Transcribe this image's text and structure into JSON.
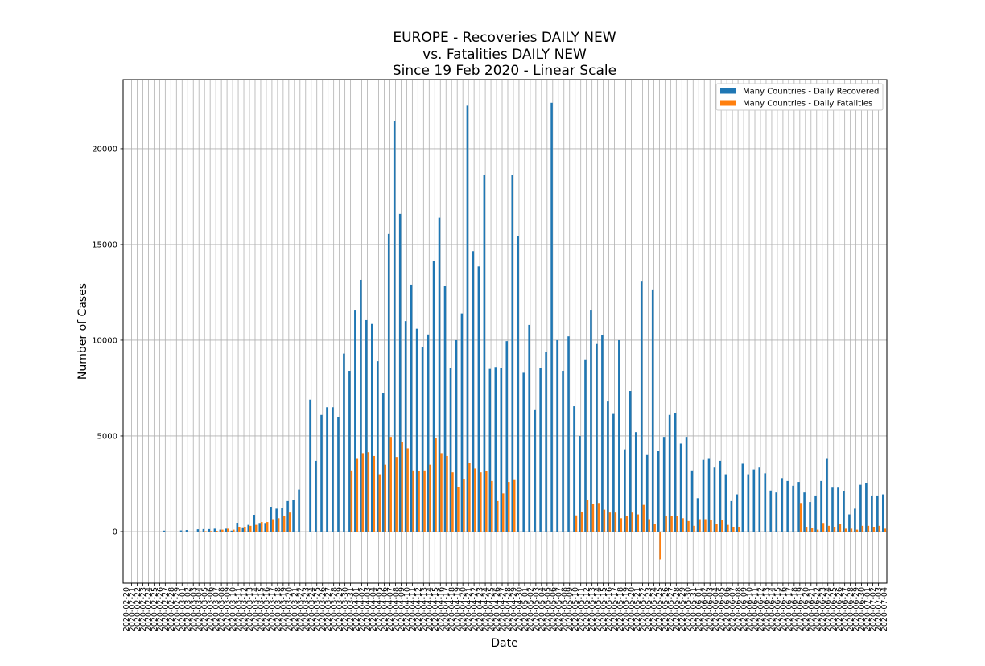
{
  "chart_data": {
    "type": "bar",
    "title": [
      "EUROPE - Recoveries DAILY NEW",
      "vs. Fatalities DAILY NEW",
      "Since 19 Feb 2020 - Linear Scale"
    ],
    "xlabel": "Date",
    "ylabel": "Number of Cases",
    "categories": [
      "2020-02-20",
      "2020-02-21",
      "2020-02-22",
      "2020-02-23",
      "2020-02-24",
      "2020-02-25",
      "2020-02-26",
      "2020-02-27",
      "2020-02-28",
      "2020-02-29",
      "2020-03-01",
      "2020-03-02",
      "2020-03-03",
      "2020-03-04",
      "2020-03-05",
      "2020-03-06",
      "2020-03-07",
      "2020-03-08",
      "2020-03-09",
      "2020-03-10",
      "2020-03-11",
      "2020-03-12",
      "2020-03-13",
      "2020-03-14",
      "2020-03-15",
      "2020-03-16",
      "2020-03-17",
      "2020-03-18",
      "2020-03-19",
      "2020-03-20",
      "2020-03-21",
      "2020-03-22",
      "2020-03-23",
      "2020-03-24",
      "2020-03-25",
      "2020-03-26",
      "2020-03-27",
      "2020-03-28",
      "2020-03-29",
      "2020-03-30",
      "2020-03-31",
      "2020-04-01",
      "2020-04-02",
      "2020-04-03",
      "2020-04-04",
      "2020-04-05",
      "2020-04-06",
      "2020-04-07",
      "2020-04-08",
      "2020-04-09",
      "2020-04-10",
      "2020-04-11",
      "2020-04-12",
      "2020-04-13",
      "2020-04-14",
      "2020-04-15",
      "2020-04-16",
      "2020-04-17",
      "2020-04-18",
      "2020-04-19",
      "2020-04-20",
      "2020-04-21",
      "2020-04-22",
      "2020-04-23",
      "2020-04-24",
      "2020-04-25",
      "2020-04-26",
      "2020-04-27",
      "2020-04-28",
      "2020-04-29",
      "2020-04-30",
      "2020-05-01",
      "2020-05-02",
      "2020-05-03",
      "2020-05-04",
      "2020-05-05",
      "2020-05-06",
      "2020-05-07",
      "2020-05-08",
      "2020-05-09",
      "2020-05-10",
      "2020-05-11",
      "2020-05-12",
      "2020-05-13",
      "2020-05-14",
      "2020-05-15",
      "2020-05-16",
      "2020-05-17",
      "2020-05-18",
      "2020-05-19",
      "2020-05-20",
      "2020-05-21",
      "2020-05-22",
      "2020-05-23",
      "2020-05-24",
      "2020-05-25",
      "2020-05-26",
      "2020-05-27",
      "2020-05-28",
      "2020-05-29",
      "2020-05-30",
      "2020-05-31",
      "2020-06-01",
      "2020-06-02",
      "2020-06-03",
      "2020-06-04",
      "2020-06-05",
      "2020-06-06",
      "2020-06-07",
      "2020-06-08",
      "2020-06-09",
      "2020-06-10",
      "2020-06-11",
      "2020-06-12",
      "2020-06-13",
      "2020-06-14",
      "2020-06-15",
      "2020-06-16",
      "2020-06-17",
      "2020-06-18",
      "2020-06-19",
      "2020-06-20",
      "2020-06-21",
      "2020-06-22",
      "2020-06-23",
      "2020-06-24",
      "2020-06-25",
      "2020-06-26",
      "2020-06-27",
      "2020-06-28",
      "2020-06-29",
      "2020-06-30",
      "2020-07-01",
      "2020-07-02",
      "2020-07-03",
      "2020-07-04"
    ],
    "series": [
      {
        "name": "Many Countries - Daily Recovered",
        "color": "#1f77b4",
        "values": [
          0,
          0,
          0,
          0,
          0,
          0,
          0,
          50,
          0,
          0,
          60,
          80,
          0,
          120,
          130,
          130,
          150,
          100,
          150,
          50,
          460,
          220,
          350,
          880,
          450,
          450,
          1300,
          1200,
          1250,
          1600,
          1650,
          2200,
          0,
          6900,
          3700,
          6100,
          6500,
          6500,
          6000,
          9300,
          8400,
          11550,
          13150,
          11050,
          10850,
          8900,
          7250,
          15550,
          21450,
          16600,
          11000,
          12900,
          10600,
          9650,
          10300,
          14150,
          16400,
          12850,
          8550,
          10000,
          11400,
          22250,
          14650,
          13850,
          18650,
          8500,
          8600,
          8550,
          9950,
          18650,
          15450,
          8300,
          10800,
          6350,
          8550,
          9400,
          22400,
          10000,
          8400,
          10200,
          6550,
          5000,
          9000,
          11550,
          9800,
          10250,
          6800,
          6150,
          10000,
          4300,
          7350,
          5200,
          13100,
          4000,
          12650,
          4200,
          4950,
          6100,
          6200,
          4600,
          4950,
          3200,
          1750,
          3750,
          3800,
          3350,
          3700,
          3000,
          1600,
          1950,
          3550,
          3000,
          3250,
          3350,
          3050,
          2150,
          2050,
          2800,
          2650,
          2400,
          2600,
          2050,
          1550,
          1850,
          2650,
          3800,
          2300,
          2300,
          2100,
          900,
          1200,
          2450,
          2550,
          1850,
          1850,
          1950
        ]
      },
      {
        "name": "Many Countries - Daily Fatalities",
        "color": "#ff7f0e",
        "values": [
          0,
          0,
          0,
          0,
          0,
          0,
          0,
          0,
          0,
          0,
          0,
          0,
          0,
          10,
          20,
          30,
          40,
          100,
          150,
          100,
          250,
          250,
          300,
          350,
          500,
          500,
          650,
          700,
          800,
          1000,
          0,
          0,
          0,
          0,
          0,
          0,
          0,
          0,
          0,
          0,
          3200,
          3800,
          4100,
          4150,
          3950,
          3000,
          3500,
          4950,
          3900,
          4700,
          4350,
          3200,
          3150,
          3200,
          3500,
          4900,
          4100,
          3950,
          3100,
          2350,
          2750,
          3600,
          3300,
          3100,
          3150,
          2650,
          1600,
          2000,
          2600,
          2700,
          0,
          0,
          0,
          0,
          0,
          0,
          0,
          0,
          0,
          0,
          850,
          1050,
          1650,
          1450,
          1500,
          1150,
          1000,
          1000,
          700,
          800,
          1000,
          900,
          1400,
          650,
          400,
          -1450,
          800,
          800,
          800,
          700,
          550,
          300,
          650,
          650,
          600,
          400,
          600,
          350,
          250,
          250,
          0,
          0,
          0,
          0,
          0,
          0,
          0,
          0,
          0,
          0,
          1500,
          250,
          200,
          100,
          450,
          300,
          250,
          400,
          150,
          150,
          100,
          300,
          300,
          250,
          300,
          150
        ]
      }
    ],
    "ylim": [
      -2690,
      23610
    ],
    "yticks": [
      0,
      5000,
      10000,
      15000,
      20000
    ],
    "grid": true,
    "legend": "upper right"
  }
}
